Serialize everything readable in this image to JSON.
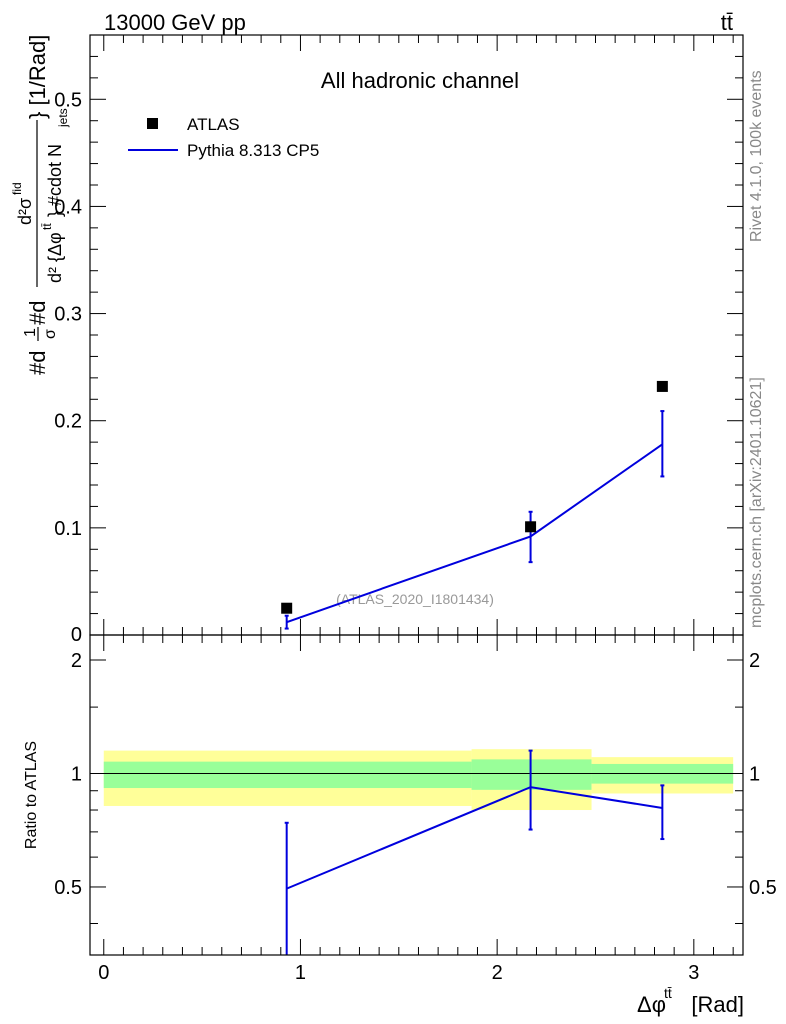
{
  "header": {
    "energy_label": "13000 GeV pp",
    "process_label": "tt̄"
  },
  "side_labels": {
    "rivet": "Rivet 4.1.0,  100k events",
    "source": "mcplots.cern.ch [arXiv:2401.10621]"
  },
  "chart_data": [
    {
      "type": "scatter",
      "panel": "main",
      "title": "All hadronic channel",
      "watermark": "(ATLAS_2020_I1801434)",
      "ylabel": "#d̅#frac{1}{σ}#d{d²σ^{fid}}{d²{Δφ^{tt̄} #cdot N_{jets}} [1/Rad]",
      "ylabel_parts": {
        "frac_num": "1",
        "frac_den": "σ",
        "prefix": "#d",
        "mid": "#d",
        "num": "d²σ",
        "num_sup": "fid",
        "den": "d² {Δφ",
        "den_sup": "tt̄",
        "den_tail": "} #cdot N",
        "den_sub": "jets",
        "unit": "} [1/Rad]"
      },
      "xlim": [
        -0.07,
        3.25
      ],
      "ylim": [
        0,
        0.56
      ],
      "yticks": [
        0.1,
        0.2,
        0.3,
        0.4,
        0.5
      ],
      "ytick_labels": [
        "0.1",
        "0.2",
        "0.3",
        "0.4",
        "0.5"
      ],
      "ybottom_label": "0",
      "legend_position": "top-left",
      "series": [
        {
          "name": "ATLAS",
          "marker": "square",
          "color": "#000000",
          "x": [
            0.93,
            2.17,
            2.84
          ],
          "y": [
            0.025,
            0.101,
            0.232
          ]
        },
        {
          "name": "Pythia 8.313 CP5",
          "marker": "line",
          "color": "#0000dd",
          "x": [
            0.93,
            2.17,
            2.84
          ],
          "y": [
            0.012,
            0.092,
            0.178
          ],
          "err_low": [
            0.006,
            0.068,
            0.148
          ],
          "err_high": [
            0.018,
            0.115,
            0.209
          ]
        }
      ]
    },
    {
      "type": "line",
      "panel": "ratio",
      "ylabel": "Ratio to ATLAS",
      "xlabel": "Δφ",
      "xlabel_sup": "tt̄",
      "xlabel_unit": "[Rad]",
      "xlim": [
        -0.07,
        3.25
      ],
      "ylim": [
        0.33,
        2.33
      ],
      "xticks": [
        0,
        1,
        2,
        3
      ],
      "xtick_labels": [
        "0",
        "1",
        "2",
        "3"
      ],
      "yticks": [
        0.5,
        1,
        2
      ],
      "ytick_labels": [
        "0.5",
        "1",
        "2"
      ],
      "reference": 1.0,
      "bands": [
        {
          "x0": 0.0,
          "x1": 1.87,
          "inner": [
            0.915,
            1.075
          ],
          "outer": [
            0.82,
            1.15
          ]
        },
        {
          "x0": 1.87,
          "x1": 2.48,
          "inner": [
            0.905,
            1.09
          ],
          "outer": [
            0.8,
            1.16
          ]
        },
        {
          "x0": 2.48,
          "x1": 3.2,
          "inner": [
            0.94,
            1.06
          ],
          "outer": [
            0.885,
            1.105
          ]
        }
      ],
      "band_colors": {
        "inner": "#99ff99",
        "outer": "#ffff99"
      },
      "series": [
        {
          "name": "Pythia 8.313 CP5",
          "color": "#0000dd",
          "x": [
            0.93,
            2.17,
            2.84
          ],
          "y": [
            0.495,
            0.92,
            0.81
          ],
          "err_low": [
            0.33,
            0.71,
            0.67
          ],
          "err_high": [
            0.74,
            1.15,
            0.93
          ]
        }
      ]
    }
  ]
}
